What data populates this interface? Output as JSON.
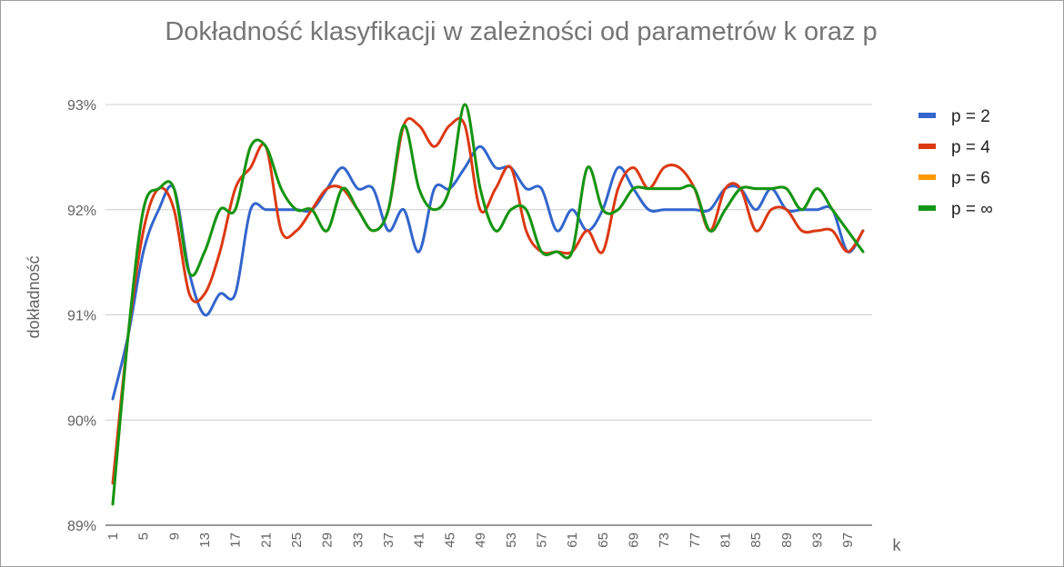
{
  "chart_data": {
    "type": "line",
    "title": "Dokładność klasyfikacji w zależności od parametrów k oraz p",
    "xlabel": "k",
    "ylabel": "dokładność",
    "ylim": [
      89,
      93
    ],
    "yticks": [
      "89%",
      "90%",
      "91%",
      "92%",
      "93%"
    ],
    "xticks": [
      "1",
      "5",
      "9",
      "13",
      "17",
      "21",
      "25",
      "29",
      "33",
      "37",
      "41",
      "45",
      "49",
      "53",
      "57",
      "61",
      "65",
      "69",
      "73",
      "77",
      "81",
      "85",
      "89",
      "93",
      "97"
    ],
    "grid": true,
    "legend_position": "right",
    "x": [
      1,
      3,
      5,
      7,
      9,
      11,
      13,
      15,
      17,
      19,
      21,
      23,
      25,
      27,
      29,
      31,
      33,
      35,
      37,
      39,
      41,
      43,
      45,
      47,
      49,
      51,
      53,
      55,
      57,
      59,
      61,
      63,
      65,
      67,
      69,
      71,
      73,
      75,
      77,
      79,
      81,
      83,
      85,
      87,
      89,
      91,
      93,
      95,
      97,
      99
    ],
    "series": [
      {
        "name": "p = 2",
        "color": "#3366cc",
        "values": [
          90.2,
          90.8,
          91.6,
          92.0,
          92.2,
          91.4,
          91.0,
          91.2,
          91.2,
          92.0,
          92.0,
          92.0,
          92.0,
          92.0,
          92.2,
          92.4,
          92.2,
          92.2,
          91.8,
          92.0,
          91.6,
          92.2,
          92.2,
          92.4,
          92.6,
          92.4,
          92.4,
          92.2,
          92.2,
          91.8,
          92.0,
          91.8,
          92.0,
          92.4,
          92.2,
          92.0,
          92.0,
          92.0,
          92.0,
          92.0,
          92.2,
          92.2,
          92.0,
          92.2,
          92.0,
          92.0,
          92.0,
          92.0,
          91.6,
          91.8
        ]
      },
      {
        "name": "p = 4",
        "color": "#dc3912",
        "values": [
          89.4,
          90.8,
          91.8,
          92.2,
          92.0,
          91.2,
          91.2,
          91.6,
          92.2,
          92.4,
          92.6,
          91.8,
          91.8,
          92.0,
          92.2,
          92.2,
          92.0,
          91.8,
          92.0,
          92.8,
          92.8,
          92.6,
          92.8,
          92.8,
          92.0,
          92.2,
          92.4,
          91.8,
          91.6,
          91.6,
          91.6,
          91.8,
          91.6,
          92.2,
          92.4,
          92.2,
          92.4,
          92.4,
          92.2,
          91.8,
          92.2,
          92.2,
          91.8,
          92.0,
          92.0,
          91.8,
          91.8,
          91.8,
          91.6,
          91.8
        ]
      },
      {
        "name": "p = 6",
        "color": "#ff9900",
        "values": [
          89.2,
          90.8,
          92.0,
          92.2,
          92.2,
          91.4,
          91.6,
          92.0,
          92.0,
          92.6,
          92.6,
          92.2,
          92.0,
          92.0,
          91.8,
          92.2,
          92.0,
          91.8,
          92.0,
          92.8,
          92.2,
          92.0,
          92.2,
          93.0,
          92.2,
          91.8,
          92.0,
          92.0,
          91.6,
          91.6,
          91.6,
          92.4,
          92.0,
          92.0,
          92.2,
          92.2,
          92.2,
          92.2,
          92.2,
          91.8,
          92.0,
          92.2,
          92.2,
          92.2,
          92.2,
          92.0,
          92.2,
          92.0,
          91.8,
          91.6
        ]
      },
      {
        "name": "p = ∞",
        "color": "#109618",
        "values": [
          89.2,
          90.8,
          92.0,
          92.2,
          92.2,
          91.4,
          91.6,
          92.0,
          92.0,
          92.6,
          92.6,
          92.2,
          92.0,
          92.0,
          91.8,
          92.2,
          92.0,
          91.8,
          92.0,
          92.8,
          92.2,
          92.0,
          92.2,
          93.0,
          92.2,
          91.8,
          92.0,
          92.0,
          91.6,
          91.6,
          91.6,
          92.4,
          92.0,
          92.0,
          92.2,
          92.2,
          92.2,
          92.2,
          92.2,
          91.8,
          92.0,
          92.2,
          92.2,
          92.2,
          92.2,
          92.0,
          92.2,
          92.0,
          91.8,
          91.6
        ]
      }
    ],
    "colors": {
      "grid": "#cccccc",
      "axis": "#333333",
      "title": "#757575",
      "label": "#616161",
      "legend_text": "#222222"
    }
  }
}
